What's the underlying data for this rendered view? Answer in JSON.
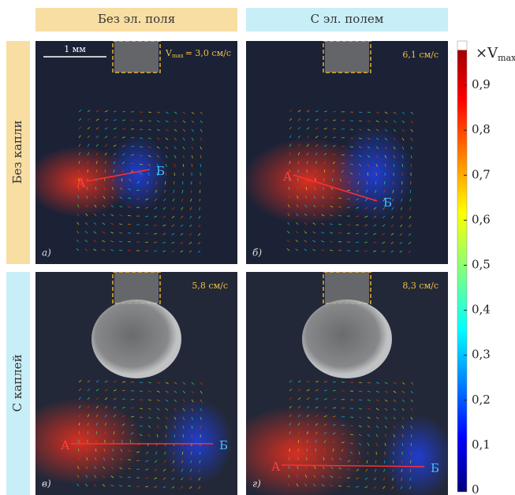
{
  "columns": [
    "Без  эл. поля",
    "С  эл. полем"
  ],
  "rows": [
    "Без капли",
    "С каплей"
  ],
  "scale_bar": "1 мм",
  "vmax_symbol": "V",
  "vmax_sub": "max",
  "panels": [
    {
      "label": "а)",
      "speed": "= 3,0 см/с",
      "point_a": "А",
      "point_b": "Б"
    },
    {
      "label": "б)",
      "speed": "6,1 см/с",
      "point_a": "А",
      "point_b": "Б"
    },
    {
      "label": "в)",
      "speed": "5,8 см/с",
      "point_a": "А",
      "point_b": "Б"
    },
    {
      "label": "г)",
      "speed": "8,3 см/с",
      "point_a": "А",
      "point_b": "Б"
    }
  ],
  "colorbar": {
    "unit_prefix": "×V",
    "unit_sub": "max",
    "ticks": [
      0,
      {
        "value": 0.1,
        "label": "0,1"
      },
      {
        "value": 0.2,
        "label": "0,2"
      },
      {
        "value": 0.3,
        "label": "0,3"
      },
      {
        "value": 0.4,
        "label": "0,4"
      },
      {
        "value": 0.5,
        "label": "0,5"
      },
      {
        "value": 0.6,
        "label": "0,6"
      },
      {
        "value": 0.7,
        "label": "0,7"
      },
      {
        "value": 0.8,
        "label": "0,8"
      },
      {
        "value": 0.9,
        "label": "0,9"
      }
    ]
  }
}
